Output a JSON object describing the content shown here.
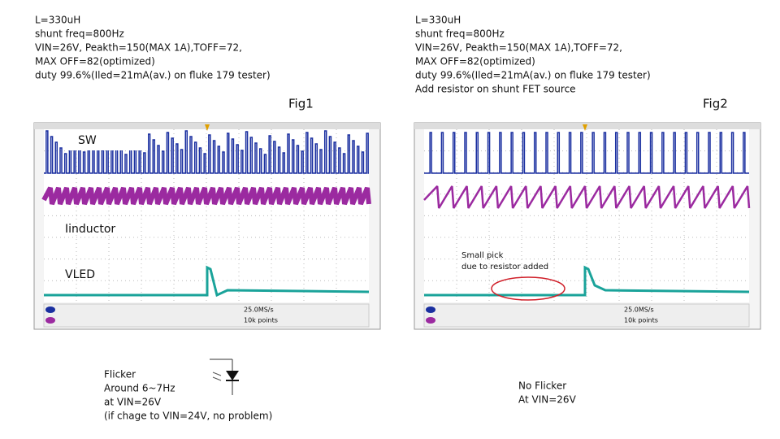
{
  "fig1": {
    "notes": [
      "L=330uH",
      "shunt freq=800Hz",
      "VIN=26V, Peakth=150(MAX 1A),TOFF=72,",
      "MAX OFF=82(optimized)",
      "duty 99.6%(Iled=21mA(av.) on fluke 179 tester)"
    ],
    "label": "Fig1",
    "scope_labels": [
      "SW",
      "Iinductor",
      "VLED"
    ],
    "scope_status": [
      "25.0MS/s",
      "10k points"
    ],
    "caption": [
      "Flicker",
      "Around 6~7Hz",
      "at VIN=26V",
      "(if chage to VIN=24V, no problem)"
    ]
  },
  "fig2": {
    "notes": [
      "L=330uH",
      "shunt freq=800Hz",
      "VIN=26V, Peakth=150(MAX 1A),TOFF=72,",
      "MAX OFF=82(optimized)",
      "duty 99.6%(Iled=21mA(av.) on fluke 179 tester)",
      "Add resistor on shunt FET source"
    ],
    "label": "Fig2",
    "annotation": [
      "Small pick",
      "due to resistor added"
    ],
    "scope_status": [
      "25.0MS/s",
      "10k points"
    ],
    "caption": [
      "No Flicker",
      "At VIN=26V"
    ]
  }
}
